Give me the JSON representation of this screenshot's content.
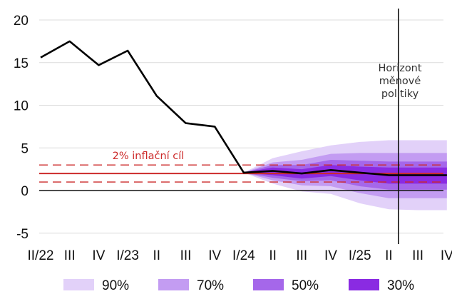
{
  "chart_data": {
    "type": "line",
    "title": "",
    "xlabel": "",
    "ylabel": "",
    "ylim": [
      -5.5,
      20.5
    ],
    "yticks": [
      -5,
      0,
      5,
      10,
      15,
      20
    ],
    "categories": [
      "II/22",
      "III",
      "IV",
      "I/23",
      "II",
      "III",
      "IV",
      "I/24",
      "II",
      "III",
      "IV",
      "I/25",
      "II",
      "III",
      "IV"
    ],
    "series": [
      {
        "values": [
          15.6,
          17.5,
          14.7,
          16.4,
          11.1,
          7.9,
          7.5,
          2.1,
          2.3,
          2.0,
          2.4,
          2.1,
          1.8,
          1.8,
          1.8
        ]
      }
    ],
    "fan_chart": {
      "start_index": 7,
      "center": [
        2.1,
        2.3,
        2.0,
        2.4,
        2.1,
        1.8,
        1.8,
        1.8
      ],
      "bands": [
        {
          "label": "90%",
          "color": "#e2d1f9",
          "lower": [
            2.1,
            0.8,
            -0.1,
            -0.4,
            -1.5,
            -2.2,
            -2.3,
            -2.3
          ],
          "upper": [
            2.1,
            3.8,
            4.6,
            5.3,
            5.7,
            5.9,
            5.9,
            5.9
          ]
        },
        {
          "label": "70%",
          "color": "#c39cf2",
          "lower": [
            2.1,
            1.2,
            0.6,
            0.5,
            -0.3,
            -0.9,
            -0.9,
            -0.9
          ],
          "upper": [
            2.1,
            3.3,
            3.6,
            4.3,
            4.4,
            4.4,
            4.4,
            4.4
          ]
        },
        {
          "label": "50%",
          "color": "#a567ea",
          "lower": [
            2.1,
            1.5,
            1.1,
            1.2,
            0.5,
            0.1,
            0.1,
            0.1
          ],
          "upper": [
            2.1,
            3.0,
            3.0,
            3.6,
            3.5,
            3.4,
            3.4,
            3.4
          ]
        },
        {
          "label": "30%",
          "color": "#8a2be2",
          "lower": [
            2.1,
            1.8,
            1.4,
            1.7,
            1.2,
            0.8,
            0.8,
            0.8
          ],
          "upper": [
            2.1,
            2.7,
            2.5,
            3.0,
            2.8,
            2.7,
            2.7,
            2.7
          ]
        }
      ]
    },
    "inflation_target": {
      "value": 2,
      "lower": 1,
      "upper": 3,
      "label": "2% inflační cíl",
      "color": "#cc2a2a"
    },
    "horizon": {
      "label_lines": [
        "Horizont",
        "měnové",
        "politiky"
      ],
      "between_indices": [
        12.33,
        14.65
      ]
    },
    "grid": true,
    "legend": {
      "position": "bottom"
    }
  }
}
